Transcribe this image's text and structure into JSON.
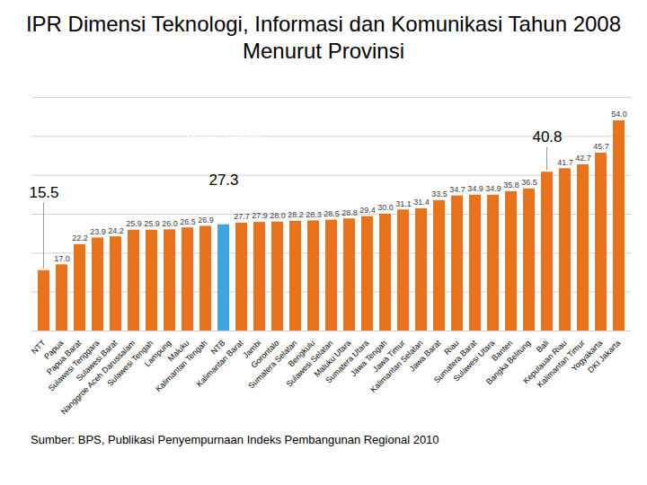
{
  "chart_data": {
    "type": "bar",
    "title": "IPR Dimensi Teknologi, Informasi dan Komunikasi Tahun 2008 Menurut Provinsi",
    "source": "Sumber: BPS, Publikasi Penyempurnaan Indeks Pembangunan Regional 2010",
    "categories": [
      "NTT",
      "Papua",
      "Papua Barat",
      "Sulawesi Tenggara",
      "Sulawesi Barat",
      "Nanggroe Aceh Darussalam",
      "Sulawesi Tengah",
      "Lampung",
      "Maluku",
      "Kalimantan Tengah",
      "NTB",
      "Kalimantan Barat",
      "Jambi",
      "Gorontalo",
      "Sumatera Selatan",
      "Bengkulu",
      "Sulawesi Selatan",
      "Maluku Utara",
      "Sumatera Utara",
      "Jawa Tengah",
      "Jawa Timur",
      "Kalimantan Selatan",
      "Jawa Barat",
      "Riau",
      "Sumatera Barat",
      "Sulawesi Utara",
      "Banten",
      "Bangka Belitung",
      "Bali",
      "Kepulauan Riau",
      "Kalimantan Timur",
      "Yogyakarta",
      "DKI Jakarta"
    ],
    "values": [
      15.5,
      17.0,
      22.2,
      23.9,
      24.2,
      25.9,
      25.9,
      26.0,
      26.5,
      26.9,
      27.3,
      27.7,
      27.9,
      28.0,
      28.2,
      28.3,
      28.5,
      28.8,
      29.4,
      30.0,
      31.1,
      31.4,
      33.5,
      34.7,
      34.9,
      34.9,
      35.8,
      36.5,
      40.8,
      41.7,
      42.7,
      45.7,
      54.0
    ],
    "value_labels": [
      null,
      "17.0",
      "22.2",
      "23.9",
      "24.2",
      "25.9",
      "25.9",
      "26.0",
      "26.5",
      "26.9",
      null,
      "27.7",
      "27.9",
      "28.0",
      "28.2",
      "28.3",
      "28.5",
      "28.8",
      "29.4",
      "30.0",
      "31.1",
      "31.4",
      "33.5",
      "34.7",
      "34.9",
      "34.9",
      "35.8",
      "36.5",
      null,
      "41.7",
      "42.7",
      "45.7",
      "54.0"
    ],
    "colors": [
      "#e8731d",
      "#e8731d",
      "#e8731d",
      "#e8731d",
      "#e8731d",
      "#e8731d",
      "#e8731d",
      "#e8731d",
      "#e8731d",
      "#e8731d",
      "#3da5e0",
      "#e8731d",
      "#e8731d",
      "#e8731d",
      "#e8731d",
      "#e8731d",
      "#e8731d",
      "#e8731d",
      "#e8731d",
      "#e8731d",
      "#e8731d",
      "#e8731d",
      "#e8731d",
      "#e8731d",
      "#e8731d",
      "#e8731d",
      "#e8731d",
      "#e8731d",
      "#e8731d",
      "#e8731d",
      "#e8731d",
      "#e8731d",
      "#e8731d"
    ],
    "annotations": [
      {
        "text": "Peringkat 23",
        "category": "NTB"
      },
      {
        "text": "15.5",
        "category": "NTT"
      },
      {
        "text": "27.3",
        "category": "NTB"
      },
      {
        "text": "40.8",
        "category": "Bali"
      }
    ],
    "ylim": [
      0,
      60
    ],
    "yticks": [
      0,
      10,
      20,
      30,
      40,
      50,
      60
    ],
    "grid": true,
    "data_labels": true,
    "tick_labels": "x"
  }
}
